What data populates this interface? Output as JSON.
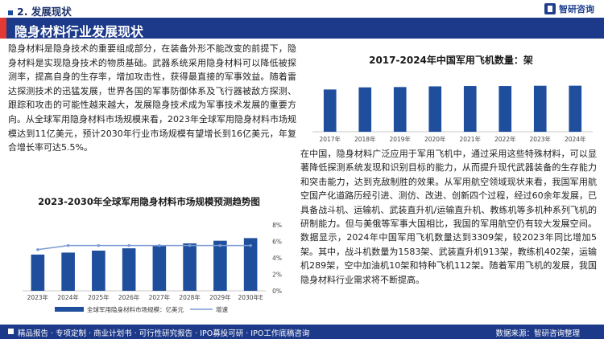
{
  "section_title": "2. 发展现状",
  "logo_text": "智研咨询",
  "banner_title": "隐身材料行业发展现状",
  "intro_text": "隐身材料是隐身技术的重要组成部分，在装备外形不能改变的前提下，隐身材料是实现隐身技术的物质基础。武器系统采用隐身材料可以降低被探测率，提高自身的生存率，增加攻击性，获得最直接的军事效益。随着雷达探测技术的迅猛发展，世界各国的军事防御体系及飞行器被敌方探测、跟踪和攻击的可能性越来越大，发展隐身技术成为军事技术发展的重要方向。从全球军用隐身材料市场规模来看，2023年全球军用隐身材料市场规模达到11亿美元，预计2030年行业市场规模有望增长到16亿美元，年复合增长率可达5.5%。",
  "analysis_text": "在中国，隐身材料广泛应用于军用飞机中，通过采用这些特殊材料，可以显著降低探测系统发现和识别目标的能力，从而提升现代武器装备的生存能力和突击能力，达到克敌制胜的效果。从军用航空领域现状来看，我国军用航空国产化道路历经引进、测仿、改进、创新四个过程，经过60余年发展，已具备战斗机、运输机、武装直升机/运输直升机、教练机等多机种系列飞机的研制能力。但与美俄等军事大国相比，我国的军用航空仍有较大发展空间。数据显示，2024年中国军用飞机数量达到3309架，较2023年同比增加5架。其中，战斗机数量为1583架、武装直升机913架，教练机402架，运输机289架，空中加油机10架和特种飞机112架。随着军用飞机的发展，我国隐身材料行业需求将不断提高。",
  "footer_left": "精品报告 · 专项定制 · 商业计划书 · 可行性研究报告 · IPO募投可研 · IPO工作底稿咨询",
  "footer_right": "数据来源：智研咨询整理",
  "colors": {
    "navy": "#1d3a8a",
    "bar": "#1f4e9c",
    "line": "#7a9bd6",
    "accent": "#e03a32"
  },
  "chart_data": [
    {
      "type": "bar+line",
      "title": "2023-2030年全球军用隐身材料市场规模预测趋势图",
      "categories": [
        "2023年",
        "2024年",
        "2025年",
        "2026年",
        "2027年",
        "2028年",
        "2029年",
        "2030年E"
      ],
      "series": [
        {
          "name": "全球军用隐身材料市场规模：亿美元",
          "type": "bar",
          "axis": "left",
          "values": [
            11,
            11.6,
            12.2,
            12.9,
            13.6,
            14.4,
            15.2,
            16
          ]
        },
        {
          "name": "增速",
          "type": "line",
          "axis": "right",
          "values": [
            5.0,
            5.5,
            5.5,
            5.5,
            5.5,
            5.5,
            5.5,
            5.5
          ]
        }
      ],
      "ylim_right": [
        0,
        8
      ],
      "right_ticks": [
        "0%",
        "2%",
        "4%",
        "6%",
        "8%"
      ],
      "legend_position": "bottom",
      "grid": false
    },
    {
      "type": "bar",
      "title": "2017-2024年中国军用飞机数量：架",
      "categories": [
        "2017年",
        "2018年",
        "2019年",
        "2020年",
        "2021年",
        "2022年",
        "2023年",
        "2024年"
      ],
      "values": [
        3035,
        3187,
        3210,
        3260,
        3285,
        3285,
        3304,
        3309
      ],
      "ylim": [
        0,
        4500
      ],
      "grid": false,
      "legend_position": "none"
    }
  ]
}
